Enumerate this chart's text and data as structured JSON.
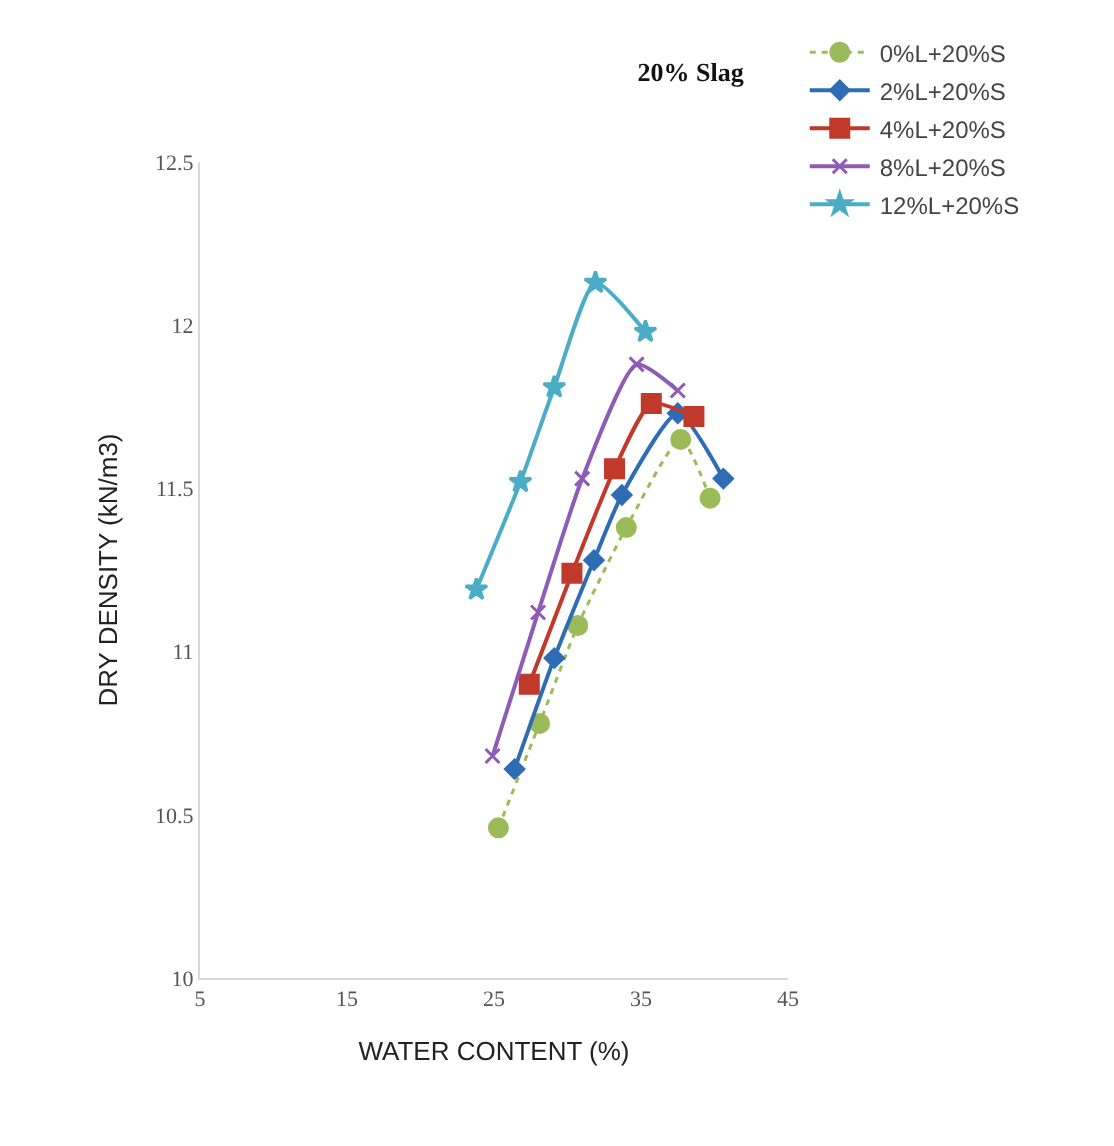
{
  "chart_data": {
    "type": "line",
    "title": "20% Slag",
    "xlabel": "WATER CONTENT (%)",
    "ylabel": "DRY DENSITY (kN/m3)",
    "xlim": [
      5,
      45
    ],
    "xticks": [
      5,
      15,
      25,
      35,
      45
    ],
    "ylim": [
      10,
      12.5
    ],
    "yticks": [
      10,
      10.5,
      11,
      11.5,
      12,
      12.5
    ],
    "grid": false,
    "legend": "top right",
    "series": [
      {
        "name": "0%L+20%S",
        "color": "#9bbb59",
        "marker": "circle",
        "line_style": "dotted",
        "x": [
          25.3,
          28.1,
          30.7,
          34.0,
          37.7,
          39.7
        ],
        "values": [
          10.46,
          10.78,
          11.08,
          11.38,
          11.65,
          11.47
        ]
      },
      {
        "name": "2%L+20%S",
        "color": "#2e6db4",
        "marker": "diamond",
        "line_style": "solid",
        "x": [
          26.4,
          29.1,
          31.8,
          33.7,
          37.5,
          40.6
        ],
        "values": [
          10.64,
          10.98,
          11.28,
          11.48,
          11.73,
          11.53
        ]
      },
      {
        "name": "4%L+20%S",
        "color": "#c0392b",
        "marker": "square",
        "line_style": "solid",
        "x": [
          27.4,
          30.3,
          33.2,
          35.7,
          38.6
        ],
        "values": [
          10.9,
          11.24,
          11.56,
          11.76,
          11.72
        ]
      },
      {
        "name": "8%L+20%S",
        "color": "#8e5bb5",
        "marker": "cross",
        "line_style": "solid",
        "x": [
          24.9,
          28.0,
          31.0,
          34.7,
          37.5
        ],
        "values": [
          10.68,
          11.12,
          11.53,
          11.88,
          11.8
        ]
      },
      {
        "name": "12%L+20%S",
        "color": "#4bacc6",
        "marker": "star",
        "line_style": "solid",
        "x": [
          23.8,
          26.8,
          29.1,
          31.9,
          35.3
        ],
        "values": [
          11.19,
          11.52,
          11.81,
          12.13,
          11.98
        ]
      }
    ]
  }
}
